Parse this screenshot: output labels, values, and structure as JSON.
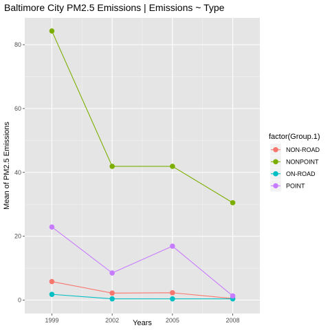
{
  "chart_data": {
    "type": "line",
    "title": "Baltimore City PM2.5 Emissions | Emissions ~ Type",
    "xlabel": "Years",
    "ylabel": "Mean of PM2.5 Emissions",
    "x": [
      1999,
      2002,
      2005,
      2008
    ],
    "xticks": [
      "1999",
      "2002",
      "2005",
      "2008"
    ],
    "yticks": [
      0,
      20,
      40,
      60,
      80
    ],
    "ylim": [
      -4.2,
      88.4
    ],
    "grid": true,
    "legend": {
      "title": "factor(Group.1)",
      "placement": "right"
    },
    "series": [
      {
        "name": "NON-ROAD",
        "color": "#F8766D",
        "values": [
          5.8,
          2.2,
          2.3,
          0.5
        ]
      },
      {
        "name": "NONPOINT",
        "color": "#7CAE00",
        "values": [
          84.3,
          41.9,
          41.9,
          30.5
        ]
      },
      {
        "name": "ON-ROAD",
        "color": "#00BFC4",
        "values": [
          1.8,
          0.4,
          0.4,
          0.4
        ]
      },
      {
        "name": "POINT",
        "color": "#C77CFF",
        "values": [
          22.9,
          8.5,
          16.9,
          1.3
        ]
      }
    ]
  }
}
